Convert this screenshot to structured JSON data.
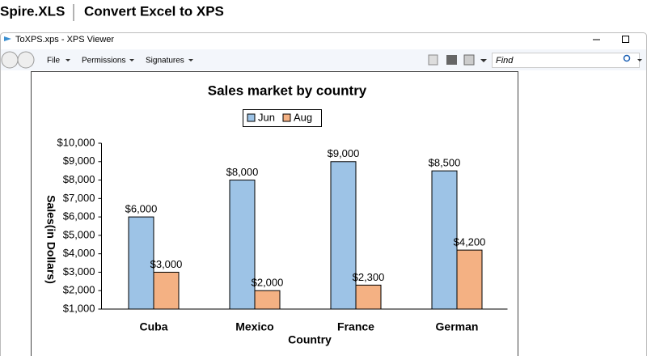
{
  "header": {
    "brand": "Spire.XLS",
    "title": "Convert Excel to XPS"
  },
  "window": {
    "title": "ToXPS.xps - XPS Viewer",
    "menu": [
      "File",
      "Permissions",
      "Signatures"
    ],
    "search_placeholder": "Find"
  },
  "chart_data": {
    "type": "bar",
    "title": "Sales market by country",
    "x_label": "Country",
    "y_label": "Sales(in Dollars)",
    "categories": [
      "Cuba",
      "Mexico",
      "France",
      "German"
    ],
    "series": [
      {
        "name": "Jun",
        "color": "#9dc3e6",
        "values": [
          6000,
          8000,
          9000,
          8500
        ],
        "value_labels": [
          "$6,000",
          "$8,000",
          "$9,000",
          "$8,500"
        ]
      },
      {
        "name": "Aug",
        "color": "#f4b183",
        "values": [
          3000,
          2000,
          2300,
          4200
        ],
        "value_labels": [
          "$3,000",
          "$2,000",
          "$2,300",
          "$4,200"
        ]
      }
    ],
    "ylim": [
      1000,
      10000
    ],
    "yticks": [
      {
        "value": 1000,
        "label": "$1,000"
      },
      {
        "value": 2000,
        "label": "$2,000"
      },
      {
        "value": 3000,
        "label": "$3,000"
      },
      {
        "value": 4000,
        "label": "$4,000"
      },
      {
        "value": 5000,
        "label": "$5,000"
      },
      {
        "value": 6000,
        "label": "$6,000"
      },
      {
        "value": 7000,
        "label": "$7,000"
      },
      {
        "value": 8000,
        "label": "$8,000"
      },
      {
        "value": 9000,
        "label": "$9,000"
      },
      {
        "value": 10000,
        "label": "$10,000"
      }
    ],
    "grid": false,
    "legend": "top"
  }
}
